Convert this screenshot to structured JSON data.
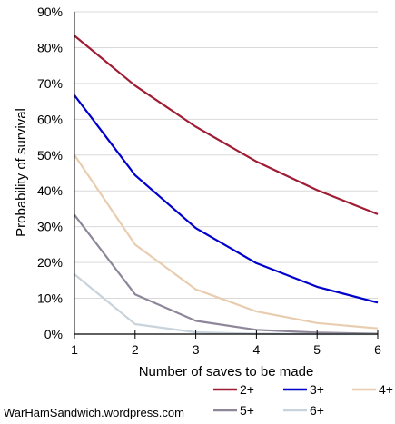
{
  "chart_data": {
    "type": "line",
    "title": "",
    "xlabel": "Number of saves to be made",
    "ylabel": "Probability of survival",
    "x": [
      1,
      2,
      3,
      4,
      5,
      6
    ],
    "xlim": [
      1,
      6
    ],
    "ylim": [
      0,
      90
    ],
    "y_ticks": [
      "0%",
      "10%",
      "20%",
      "30%",
      "40%",
      "50%",
      "60%",
      "70%",
      "80%",
      "90%"
    ],
    "x_ticks": [
      "1",
      "2",
      "3",
      "4",
      "5",
      "6"
    ],
    "grid": "horizontal",
    "legend_position": "bottom-right",
    "series": [
      {
        "name": "2+",
        "color": "#A01C35",
        "values": [
          83.3,
          69.4,
          57.9,
          48.2,
          40.2,
          33.5
        ]
      },
      {
        "name": "3+",
        "color": "#0000CC",
        "values": [
          66.7,
          44.4,
          29.6,
          19.8,
          13.2,
          8.8
        ]
      },
      {
        "name": "4+",
        "color": "#E8CDB0",
        "values": [
          50,
          25,
          12.5,
          6.3,
          3.1,
          1.6
        ]
      },
      {
        "name": "5+",
        "color": "#8E8799",
        "values": [
          33.3,
          11.1,
          3.7,
          1.2,
          0.4,
          0.1
        ]
      },
      {
        "name": "6+",
        "color": "#C9D3DC",
        "values": [
          16.7,
          2.8,
          0.5,
          0.1,
          0.0,
          0.0
        ]
      }
    ]
  },
  "footer": {
    "credit": "WarHamSandwich.wordpress.com"
  }
}
